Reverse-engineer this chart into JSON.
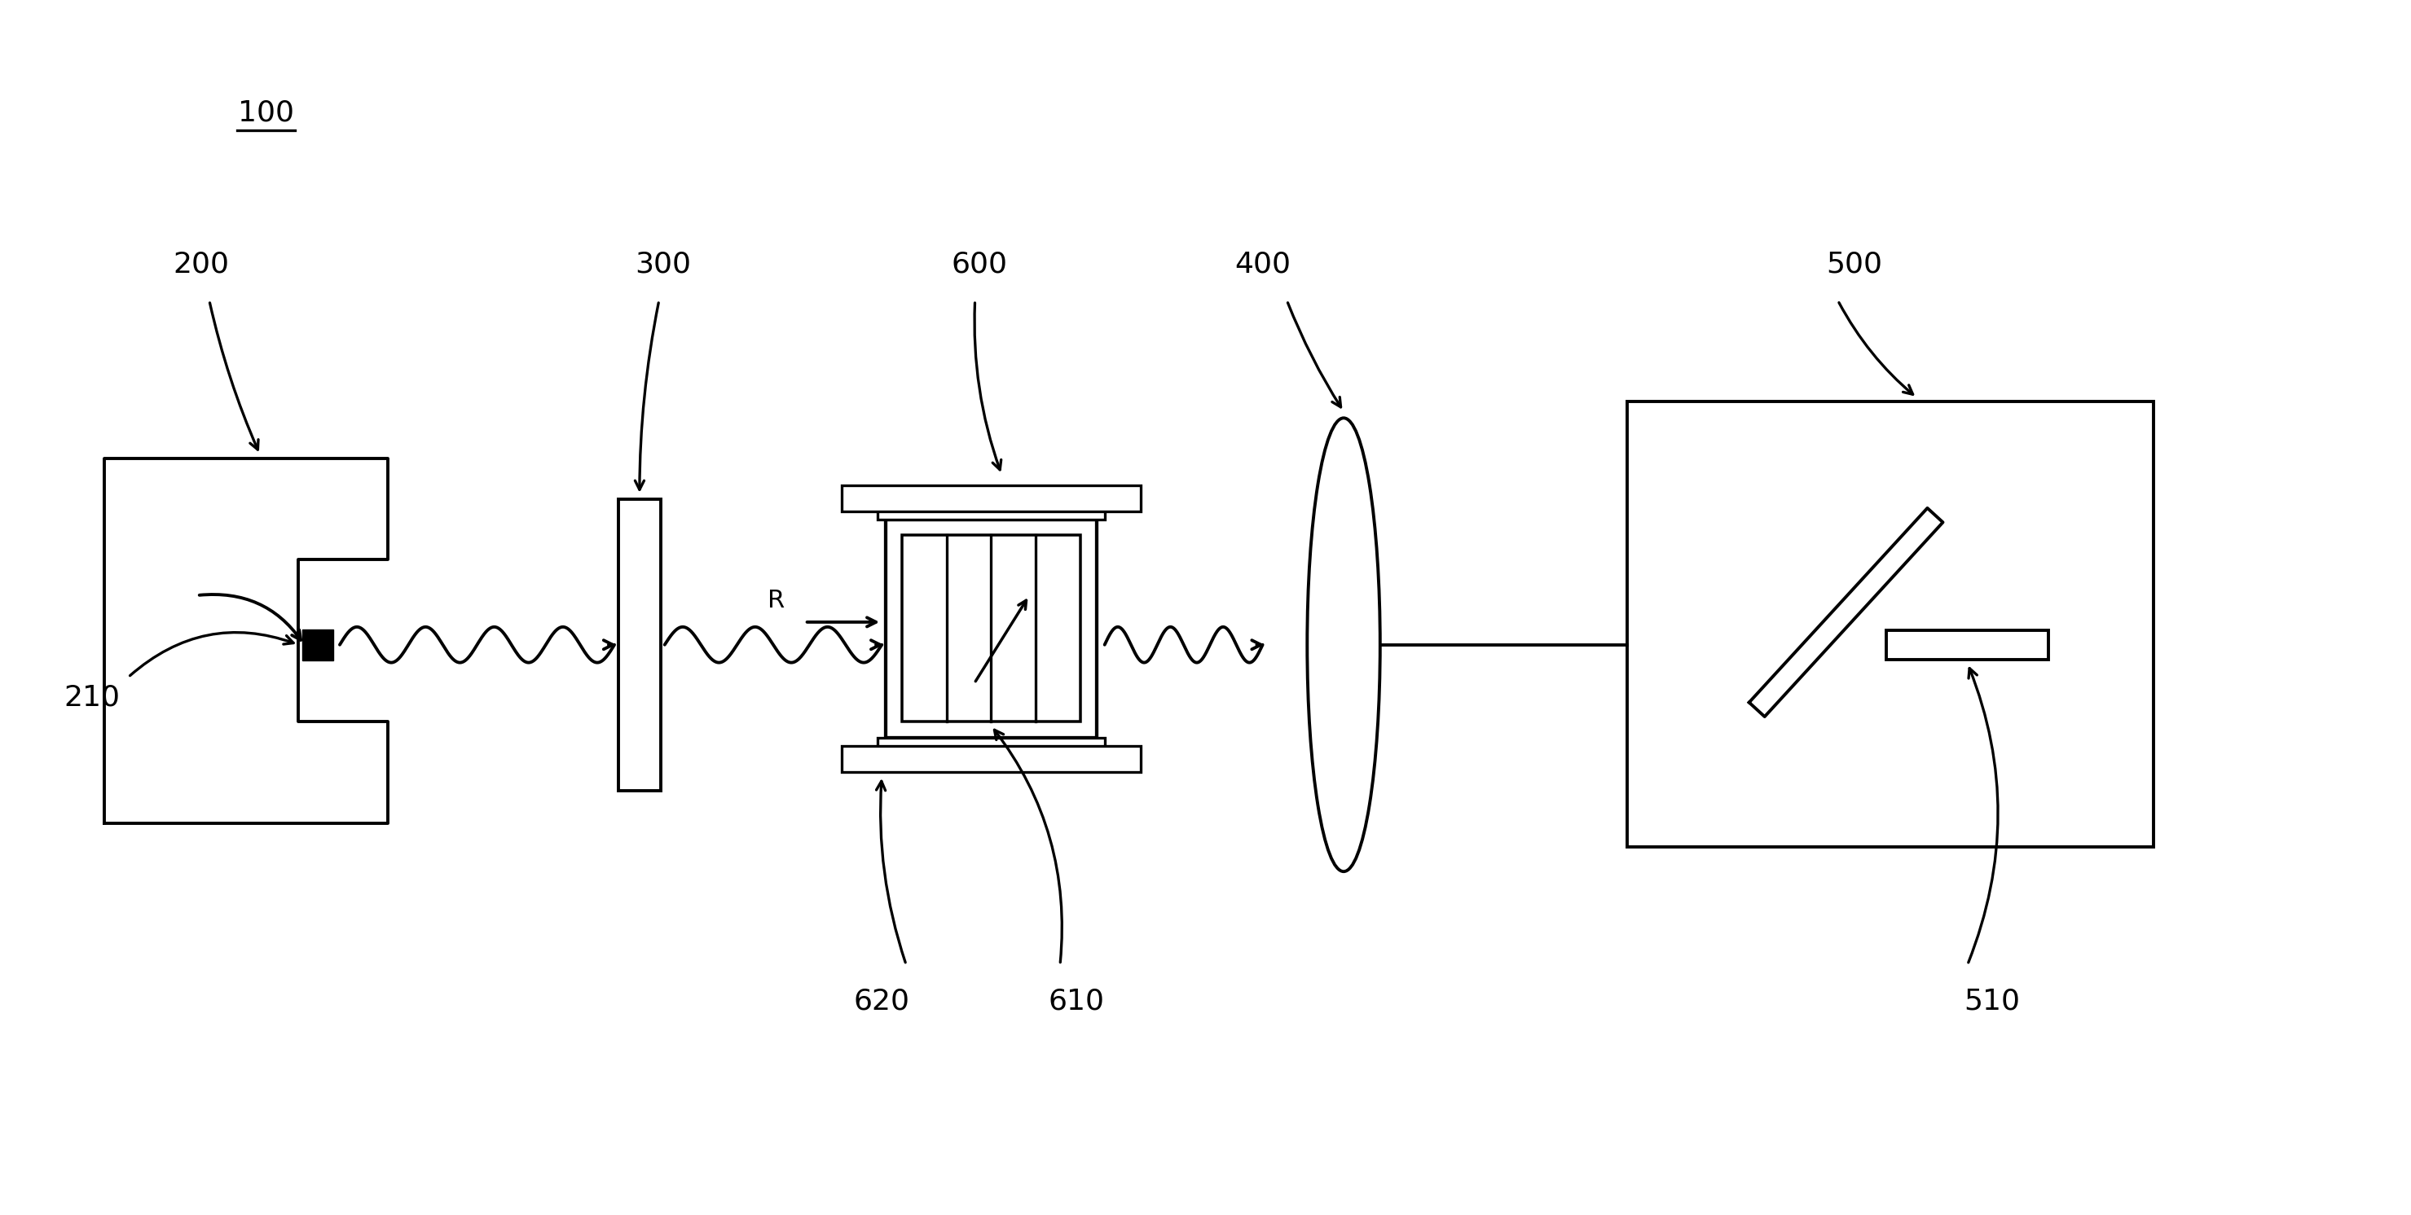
{
  "bg_color": "#ffffff",
  "line_color": "#000000",
  "fig_width": 29.59,
  "fig_height": 14.92,
  "label_100": "100",
  "label_200": "200",
  "label_210": "210",
  "label_300": "300",
  "label_400": "400",
  "label_500": "500",
  "label_510": "510",
  "label_600": "600",
  "label_610": "610",
  "label_620": "620",
  "label_R": "R",
  "font_size": 26
}
